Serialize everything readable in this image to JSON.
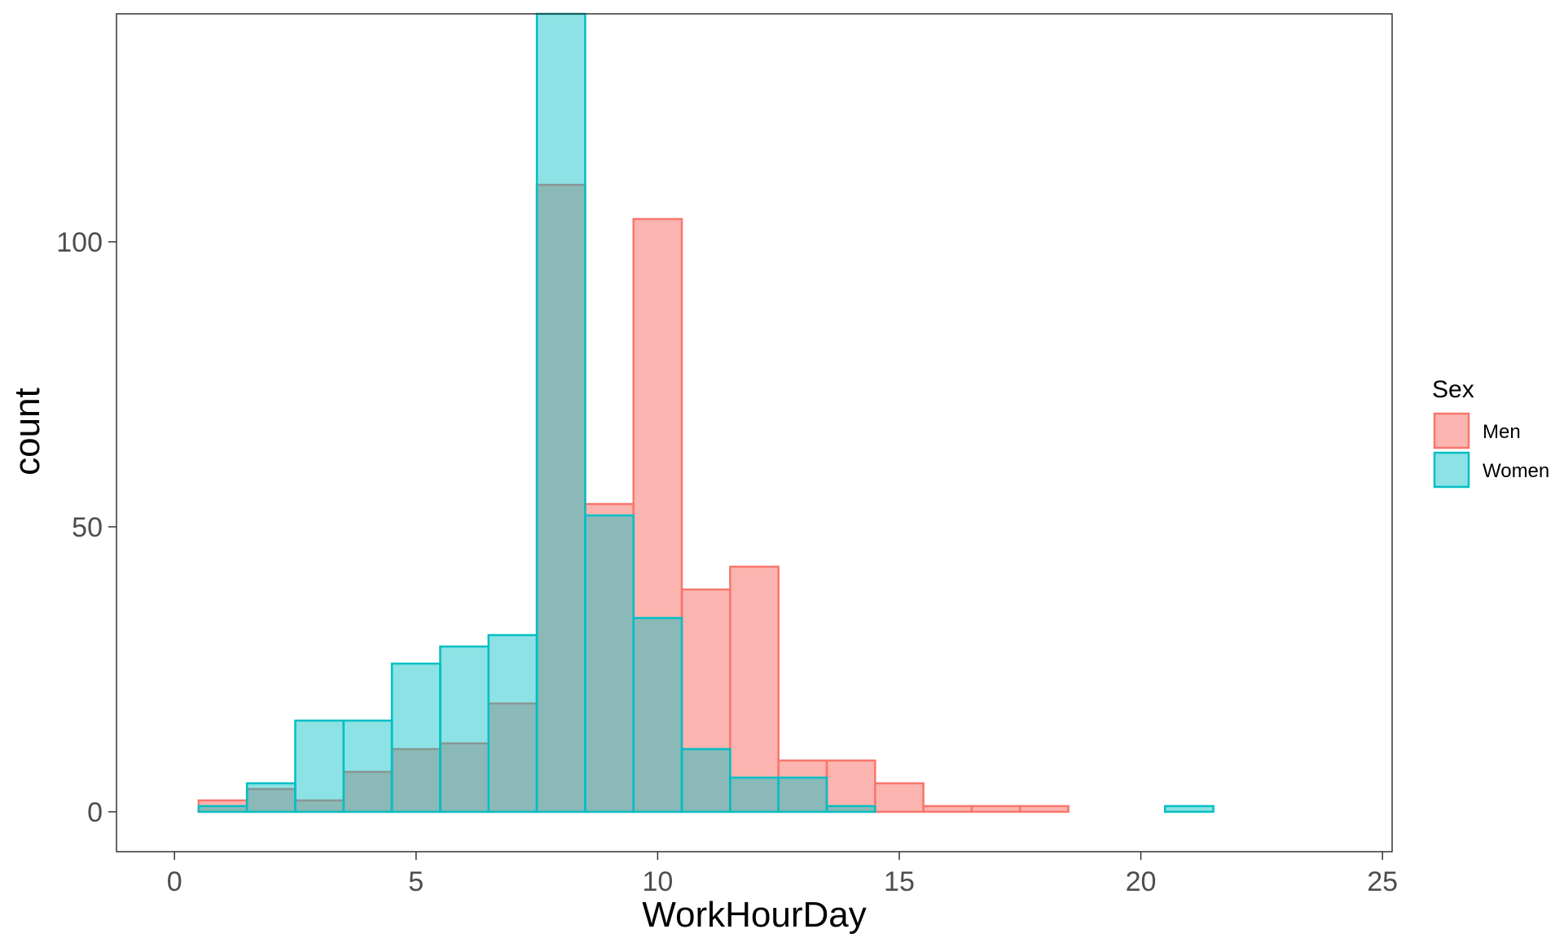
{
  "chart_data": {
    "type": "histogram",
    "xlabel": "WorkHourDay",
    "ylabel": "count",
    "xlim": [
      -1.2,
      25.2
    ],
    "ylim": [
      -7,
      140
    ],
    "x_ticks": [
      0,
      5,
      10,
      15,
      20,
      25
    ],
    "y_ticks": [
      0,
      50,
      100
    ],
    "grid": false,
    "bin_width": 1,
    "bin_centers": [
      1,
      2,
      3,
      4,
      5,
      6,
      7,
      8,
      9,
      10,
      11,
      12,
      13,
      14,
      15,
      16,
      17,
      18,
      19,
      20,
      21,
      22,
      23
    ],
    "series": [
      {
        "name": "Men",
        "color": "#F8766D",
        "fill": "#F8766D",
        "fill_opacity": 0.55,
        "values": [
          2,
          4,
          2,
          7,
          11,
          12,
          19,
          110,
          54,
          104,
          39,
          43,
          9,
          9,
          5,
          1,
          1,
          1,
          0,
          0,
          0,
          0,
          0
        ]
      },
      {
        "name": "Women",
        "color": "#00BFC4",
        "fill": "#00BFC4",
        "fill_opacity": 0.45,
        "values": [
          1,
          5,
          16,
          16,
          26,
          29,
          31,
          140,
          52,
          34,
          11,
          6,
          6,
          1,
          0,
          0,
          0,
          0,
          0,
          0,
          1,
          0,
          0
        ]
      }
    ],
    "legend": {
      "title": "Sex",
      "position": "right",
      "items": [
        "Men",
        "Women"
      ]
    }
  }
}
